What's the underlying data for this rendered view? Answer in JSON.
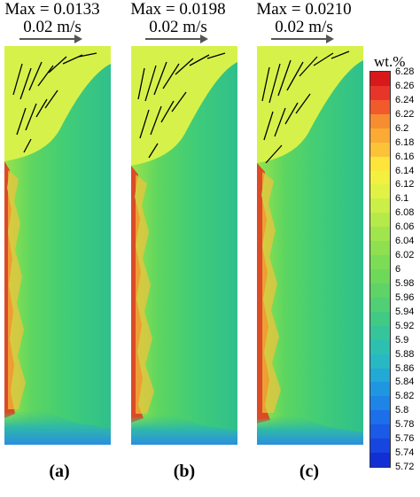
{
  "panels": [
    {
      "max_label": "Max = 0.0133",
      "scale_label": "0.02 m/s",
      "panel_label": "(a)"
    },
    {
      "max_label": "Max = 0.0198",
      "scale_label": "0.02 m/s",
      "panel_label": "(b)"
    },
    {
      "max_label": "Max = 0.0210",
      "scale_label": "0.02 m/s",
      "panel_label": "(c)"
    }
  ],
  "colorbar": {
    "title": "wt.%",
    "ticks": [
      "6.28",
      "6.26",
      "6.24",
      "6.22",
      "6.2",
      "6.18",
      "6.16",
      "6.14",
      "6.12",
      "6.1",
      "6.08",
      "6.06",
      "6.04",
      "6.02",
      "6",
      "5.98",
      "5.96",
      "5.94",
      "5.92",
      "5.9",
      "5.88",
      "5.86",
      "5.84",
      "5.82",
      "5.8",
      "5.78",
      "5.76",
      "5.74",
      "5.72"
    ],
    "colors": [
      "#d7191c",
      "#e8352a",
      "#f25a2c",
      "#f78d31",
      "#fbaa35",
      "#fcc238",
      "#fde53c",
      "#f3f03f",
      "#e2f245",
      "#ccef47",
      "#b5ea4a",
      "#a0e54d",
      "#8ee050",
      "#7ddc55",
      "#6ed85b",
      "#5fd366",
      "#50cf74",
      "#41ca84",
      "#36c59a",
      "#2dc0b1",
      "#27b8c4",
      "#22a9d6",
      "#1f97e0",
      "#1e84e6",
      "#1c6fe8",
      "#1a5ae6",
      "#1745e0",
      "#122ed5"
    ]
  },
  "colors": {
    "field_top": "#d6f24a",
    "field_main": "#47d06f",
    "field_deep": "#2ec18a",
    "rich_edge": "#e8301f",
    "bottom": "#2a9ed6"
  }
}
